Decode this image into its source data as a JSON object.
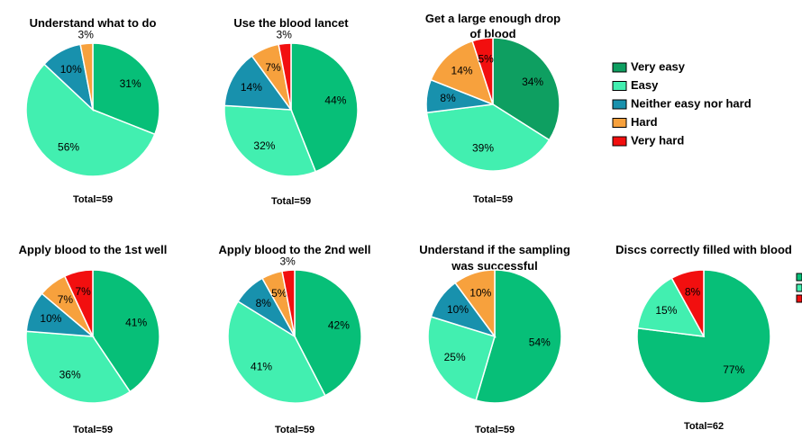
{
  "palette": {
    "very_easy": "#0e9f61",
    "easy": "#42efb0",
    "neither": "#1891ad",
    "hard": "#f7a13d",
    "very_hard": "#f20f0f",
    "correct": "#07bf78",
    "partial": "#42efb0",
    "incorrect": "#f20f0f"
  },
  "legend": [
    {
      "label": "Very easy",
      "color": "very_easy"
    },
    {
      "label": "Easy",
      "color": "easy"
    },
    {
      "label": "Neither easy nor hard",
      "color": "neither"
    },
    {
      "label": "Hard",
      "color": "hard"
    },
    {
      "label": "Very hard",
      "color": "very_hard"
    }
  ],
  "legend2_colors": [
    "correct",
    "partial",
    "incorrect"
  ],
  "chart_data": [
    {
      "type": "pie",
      "title": [
        "Understand what to do"
      ],
      "total_label": "Total=59",
      "slices": [
        {
          "value": 31,
          "label": "31%",
          "color": "correct"
        },
        {
          "value": 56,
          "label": "56%",
          "color": "easy"
        },
        {
          "value": 10,
          "label": "10%",
          "color": "neither"
        },
        {
          "value": 3,
          "label": "3%",
          "color": "hard"
        }
      ]
    },
    {
      "type": "pie",
      "title": [
        "Use the blood lancet"
      ],
      "total_label": "Total=59",
      "slices": [
        {
          "value": 44,
          "label": "44%",
          "color": "correct"
        },
        {
          "value": 32,
          "label": "32%",
          "color": "easy"
        },
        {
          "value": 14,
          "label": "14%",
          "color": "neither"
        },
        {
          "value": 7,
          "label": "7%",
          "color": "hard"
        },
        {
          "value": 3,
          "label": "3%",
          "color": "very_hard"
        }
      ]
    },
    {
      "type": "pie",
      "title": [
        "Get a large enough drop",
        "of blood"
      ],
      "total_label": "Total=59",
      "slices": [
        {
          "value": 34,
          "label": "34%",
          "color": "very_easy"
        },
        {
          "value": 39,
          "label": "39%",
          "color": "easy"
        },
        {
          "value": 8,
          "label": "8%",
          "color": "neither"
        },
        {
          "value": 14,
          "label": "14%",
          "color": "hard"
        },
        {
          "value": 5,
          "label": "5%",
          "color": "very_hard"
        }
      ]
    },
    {
      "type": "pie",
      "title": [
        "Apply blood to the 1st well"
      ],
      "total_label": "Total=59",
      "slices": [
        {
          "value": 41,
          "label": "41%",
          "color": "correct"
        },
        {
          "value": 36,
          "label": "36%",
          "color": "easy"
        },
        {
          "value": 10,
          "label": "10%",
          "color": "neither"
        },
        {
          "value": 7,
          "label": "7%",
          "color": "hard"
        },
        {
          "value": 7,
          "label": "7%",
          "color": "very_hard"
        }
      ]
    },
    {
      "type": "pie",
      "title": [
        "Apply blood to the 2nd well"
      ],
      "total_label": "Total=59",
      "slices": [
        {
          "value": 42,
          "label": "42%",
          "color": "correct"
        },
        {
          "value": 41,
          "label": "41%",
          "color": "easy"
        },
        {
          "value": 8,
          "label": "8%",
          "color": "neither"
        },
        {
          "value": 5,
          "label": "5%",
          "color": "hard"
        },
        {
          "value": 3,
          "label": "3%",
          "color": "very_hard"
        }
      ]
    },
    {
      "type": "pie",
      "title": [
        "Understand if the sampling",
        "was successful"
      ],
      "total_label": "Total=59",
      "slices": [
        {
          "value": 54,
          "label": "54%",
          "color": "correct"
        },
        {
          "value": 25,
          "label": "25%",
          "color": "easy"
        },
        {
          "value": 10,
          "label": "10%",
          "color": "neither"
        },
        {
          "value": 10,
          "label": "10%",
          "color": "hard"
        }
      ]
    },
    {
      "type": "pie",
      "title": [
        "Discs correctly filled with blood"
      ],
      "total_label": "Total=62",
      "slices": [
        {
          "value": 77,
          "label": "77%",
          "color": "correct"
        },
        {
          "value": 15,
          "label": "15%",
          "color": "partial"
        },
        {
          "value": 8,
          "label": "8%",
          "color": "incorrect"
        }
      ]
    }
  ]
}
